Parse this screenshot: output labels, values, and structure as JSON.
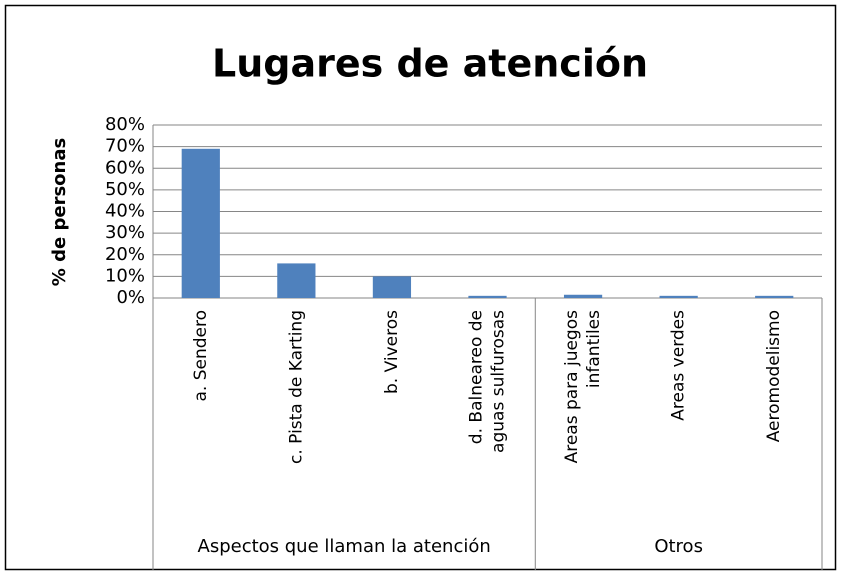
{
  "chart_data": {
    "type": "bar",
    "title": "Lugares de atención",
    "y_label": "% de personas",
    "categories": [
      [
        "a. Sendero"
      ],
      [
        "c. Pista de Karting"
      ],
      [
        "b. Viveros"
      ],
      [
        "d. Balneareo de",
        "aguas sulfurosas"
      ],
      [
        "Areas para juegos",
        "infantiles"
      ],
      [
        "Areas verdes"
      ],
      [
        "Aeromodelismo"
      ]
    ],
    "groups": [
      {
        "name": "Aspectos que llaman la atención",
        "size": 4
      },
      {
        "name": "Otros",
        "size": 3
      }
    ],
    "values": [
      69,
      16,
      10,
      1,
      1.5,
      1,
      1
    ],
    "color": "#4f81bd",
    "ylim": [
      0,
      80
    ],
    "yticks": [
      {
        "value": 0,
        "label": "0%"
      },
      {
        "value": 10,
        "label": "10%"
      },
      {
        "value": 20,
        "label": "20%"
      },
      {
        "value": 30,
        "label": "30%"
      },
      {
        "value": 40,
        "label": "40%"
      },
      {
        "value": 50,
        "label": "50%"
      },
      {
        "value": 60,
        "label": "60%"
      },
      {
        "value": 70,
        "label": "70%"
      },
      {
        "value": 80,
        "label": "80%"
      }
    ],
    "grid": true
  }
}
